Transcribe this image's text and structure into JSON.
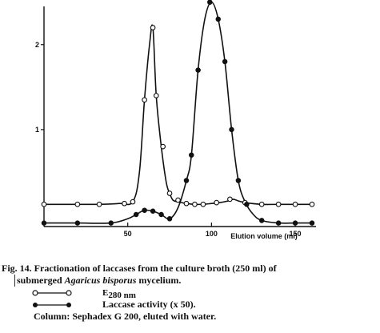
{
  "chart_data": {
    "type": "line",
    "xlabel": "Elution volume (ml)",
    "ylabel": "",
    "xlim": [
      0,
      160
    ],
    "ylim": [
      0,
      2.45
    ],
    "x_ticks": [
      50,
      100,
      150
    ],
    "y_ticks": [
      1,
      2
    ],
    "grid": false,
    "series": [
      {
        "name": "E280 nm",
        "marker": "open-circle",
        "color": "#111111",
        "x": [
          0,
          20,
          33,
          45,
          53,
          57,
          60,
          63,
          65,
          67,
          70,
          73,
          75,
          77,
          80,
          85,
          90,
          95,
          100,
          105,
          110,
          113,
          116,
          120,
          130,
          140,
          150,
          160
        ],
        "y": [
          0.12,
          0.12,
          0.12,
          0.13,
          0.15,
          0.5,
          1.35,
          2.0,
          2.2,
          1.4,
          0.8,
          0.38,
          0.25,
          0.17,
          0.15,
          0.13,
          0.12,
          0.12,
          0.13,
          0.14,
          0.16,
          0.18,
          0.16,
          0.14,
          0.12,
          0.12,
          0.12,
          0.12
        ],
        "markers_x": [
          0,
          20,
          33,
          48,
          53,
          60,
          65,
          67,
          71,
          75,
          80,
          85,
          90,
          95,
          103,
          111,
          120,
          130,
          140,
          150,
          160
        ],
        "markers_y": [
          0.12,
          0.12,
          0.12,
          0.13,
          0.15,
          1.35,
          2.2,
          1.4,
          0.8,
          0.25,
          0.17,
          0.13,
          0.12,
          0.12,
          0.14,
          0.18,
          0.14,
          0.12,
          0.12,
          0.12,
          0.12
        ]
      },
      {
        "name": "Laccase activity (x 50).",
        "marker": "filled-circle",
        "color": "#111111",
        "x": [
          0,
          20,
          40,
          50,
          55,
          60,
          65,
          70,
          75,
          80,
          85,
          88,
          92,
          96,
          100,
          104,
          108,
          112,
          116,
          120,
          125,
          130,
          140,
          150,
          160
        ],
        "y": [
          -0.1,
          -0.1,
          -0.1,
          -0.05,
          0.0,
          0.05,
          0.04,
          0.0,
          -0.05,
          0.08,
          0.4,
          0.7,
          1.7,
          2.3,
          2.5,
          2.3,
          1.8,
          1.0,
          0.4,
          0.15,
          0.0,
          -0.07,
          -0.1,
          -0.1,
          -0.1
        ],
        "markers_x": [
          0,
          20,
          40,
          55,
          60,
          65,
          70,
          75,
          85,
          88,
          92,
          99,
          104,
          108,
          112,
          116,
          121,
          130,
          140,
          150,
          160
        ],
        "markers_y": [
          -0.1,
          -0.1,
          -0.1,
          0.0,
          0.05,
          0.04,
          0.0,
          -0.05,
          0.4,
          0.7,
          1.7,
          2.5,
          2.3,
          1.8,
          1.0,
          0.4,
          0.12,
          -0.07,
          -0.1,
          -0.1,
          -0.1
        ]
      }
    ]
  },
  "caption": {
    "line1": "Fig. 14. Fractionation of laccases from the culture broth (250 ml) of",
    "line2_prefix": "submerged ",
    "line2_species": "Agaricus bisporus",
    "line2_suffix": " mycelium.",
    "legend_e_symbol": "E",
    "legend_e_subscript": "280 nm",
    "legend_laccase": "Laccase activity (x 50).",
    "column": "Column: Sephadex G 200, eluted with water."
  }
}
